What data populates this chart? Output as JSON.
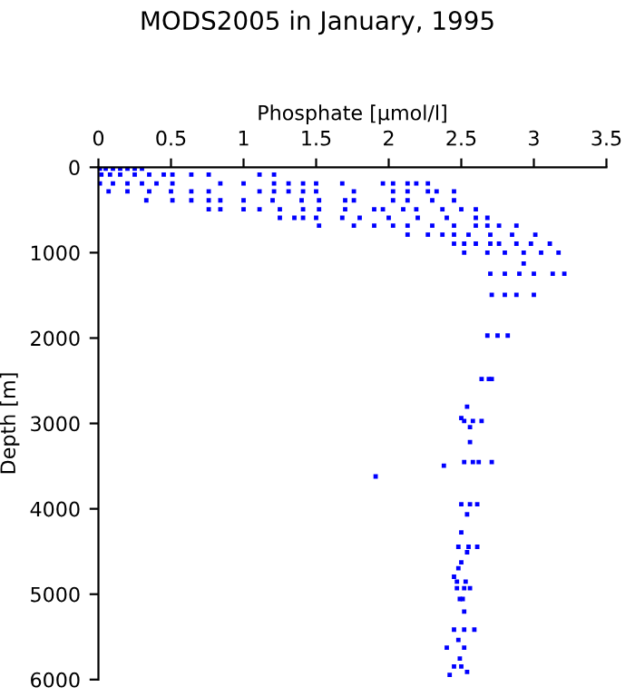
{
  "chart_data": {
    "type": "scatter",
    "title": "MODS2005 in January, 1995",
    "xlabel": "Phosphate [µmol/l]",
    "ylabel": "Depth [m]",
    "xlim": [
      0,
      3.5
    ],
    "xticks": [
      0,
      0.5,
      1,
      1.5,
      2,
      2.5,
      3,
      3.5
    ],
    "ylim": [
      6000,
      0
    ],
    "yticks": [
      0,
      1000,
      2000,
      3000,
      4000,
      5000,
      6000
    ],
    "grid": false,
    "marker": "square",
    "series": [
      {
        "color": "#0000ff",
        "x": [
          0.01,
          0.05,
          0.1,
          0.15,
          0.2,
          0.25,
          0.3,
          0.02,
          0.08,
          0.15,
          0.25,
          0.35,
          0.45,
          0.51,
          0.64,
          0.76,
          1.11,
          1.21,
          0.01,
          0.1,
          0.2,
          0.3,
          0.4,
          0.51,
          0.84,
          1.0,
          1.21,
          1.31,
          1.41,
          1.5,
          1.68,
          1.96,
          2.03,
          2.13,
          2.19,
          2.27,
          0.07,
          0.2,
          0.35,
          0.5,
          0.64,
          0.76,
          1.11,
          1.21,
          1.31,
          1.41,
          1.5,
          1.76,
          2.03,
          2.13,
          2.27,
          2.33,
          2.45,
          0.33,
          0.51,
          0.64,
          0.76,
          0.84,
          1.0,
          1.2,
          1.4,
          1.52,
          1.7,
          1.76,
          2.03,
          2.13,
          2.3,
          2.45,
          0.76,
          0.84,
          1.0,
          1.11,
          1.25,
          1.41,
          1.52,
          1.7,
          1.9,
          1.96,
          2.1,
          2.19,
          2.37,
          2.5,
          2.6,
          1.25,
          1.35,
          1.41,
          1.5,
          1.68,
          1.8,
          2.0,
          2.2,
          2.4,
          2.6,
          2.68,
          1.52,
          1.76,
          1.9,
          2.03,
          2.13,
          2.3,
          2.45,
          2.6,
          2.68,
          2.76,
          2.88,
          2.13,
          2.27,
          2.37,
          2.45,
          2.55,
          2.7,
          2.85,
          3.01,
          2.45,
          2.52,
          2.6,
          2.7,
          2.76,
          2.88,
          2.98,
          3.11,
          2.52,
          2.68,
          2.8,
          2.93,
          3.05,
          3.17,
          2.93,
          2.7,
          2.8,
          2.9,
          3.0,
          3.13,
          3.21,
          2.71,
          2.8,
          2.88,
          3.0,
          2.68,
          2.75,
          2.82,
          2.64,
          2.69,
          2.71,
          2.54,
          2.5,
          2.52,
          2.58,
          2.64,
          2.56,
          2.56,
          2.52,
          2.58,
          2.62,
          2.71,
          2.38,
          1.91,
          2.5,
          2.56,
          2.61,
          2.54,
          2.5,
          2.48,
          2.55,
          2.61,
          2.54,
          2.5,
          2.48,
          2.45,
          2.47,
          2.53,
          2.47,
          2.52,
          2.56,
          2.49,
          2.51,
          2.52,
          2.45,
          2.52,
          2.59,
          2.48,
          2.4,
          2.52,
          2.49,
          2.45,
          2.5,
          2.54,
          2.42
        ],
        "values": [
          15,
          15,
          15,
          15,
          15,
          15,
          15,
          85,
          85,
          85,
          85,
          85,
          85,
          85,
          85,
          85,
          85,
          85,
          190,
          190,
          190,
          190,
          190,
          190,
          190,
          190,
          190,
          190,
          190,
          190,
          190,
          190,
          190,
          190,
          190,
          190,
          282,
          282,
          282,
          282,
          282,
          282,
          282,
          282,
          282,
          282,
          282,
          282,
          282,
          282,
          282,
          282,
          282,
          387,
          387,
          387,
          387,
          387,
          387,
          387,
          387,
          387,
          387,
          387,
          387,
          387,
          387,
          387,
          493,
          493,
          493,
          493,
          493,
          493,
          493,
          493,
          493,
          493,
          493,
          493,
          493,
          493,
          493,
          592,
          592,
          592,
          592,
          592,
          592,
          592,
          592,
          592,
          592,
          592,
          683,
          683,
          683,
          683,
          683,
          683,
          683,
          683,
          683,
          683,
          683,
          789,
          789,
          789,
          789,
          789,
          789,
          789,
          789,
          895,
          895,
          895,
          895,
          895,
          895,
          895,
          895,
          1000,
          1000,
          1000,
          1000,
          1000,
          1000,
          1127,
          1247,
          1247,
          1247,
          1247,
          1247,
          1247,
          1494,
          1494,
          1494,
          1494,
          1971,
          1971,
          1971,
          2480,
          2480,
          2480,
          2805,
          2937,
          2972,
          2972,
          2972,
          3043,
          3219,
          3452,
          3452,
          3452,
          3452,
          3494,
          3621,
          3946,
          3946,
          3946,
          4065,
          4276,
          4445,
          4445,
          4445,
          4509,
          4627,
          4697,
          4796,
          4853,
          4853,
          4929,
          4929,
          4929,
          5056,
          5056,
          5204,
          5415,
          5415,
          5415,
          5536,
          5627,
          5627,
          5754,
          5847,
          5847,
          5910,
          5945
        ]
      }
    ]
  }
}
